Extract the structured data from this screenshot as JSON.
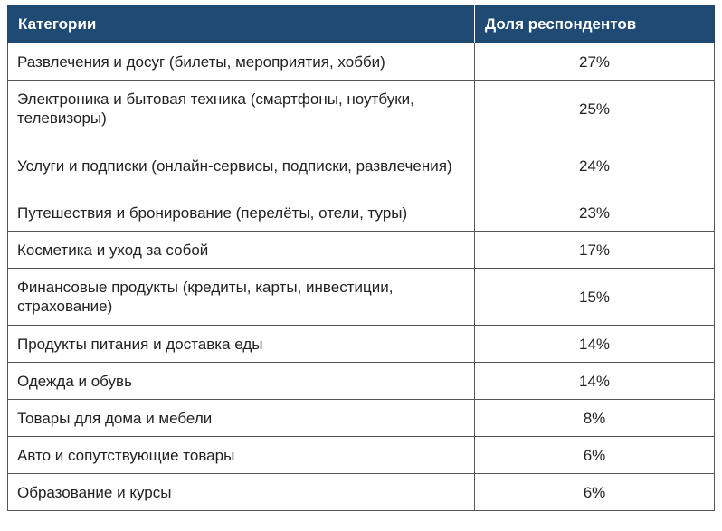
{
  "table": {
    "headers": [
      "Категории",
      "Доля респондентов"
    ],
    "rows": [
      {
        "category": "Развлечения и досуг (билеты, мероприятия, хобби)",
        "share": "27%"
      },
      {
        "category": "Электроника и бытовая техника (смартфоны, ноутбуки, телевизоры)",
        "share": "25%"
      },
      {
        "category": "Услуги и подписки (онлайн-сервисы, подписки, развлечения)",
        "share": "24%"
      },
      {
        "category": "Путешествия и бронирование (перелёты, отели, туры)",
        "share": "23%"
      },
      {
        "category": "Косметика и уход за собой",
        "share": "17%"
      },
      {
        "category": "Финансовые продукты (кредиты, карты, инвестиции, страхование)",
        "share": "15%"
      },
      {
        "category": "Продукты питания и доставка еды",
        "share": "14%"
      },
      {
        "category": "Одежда и обувь",
        "share": "14%"
      },
      {
        "category": "Товары для дома и мебели",
        "share": "8%"
      },
      {
        "category": "Авто и сопутствующие товары",
        "share": "6%"
      },
      {
        "category": "Образование и курсы",
        "share": "6%"
      }
    ]
  }
}
